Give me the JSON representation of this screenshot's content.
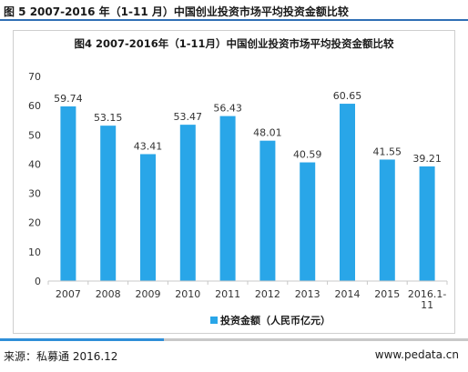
{
  "page": {
    "figure_title": "图 5 2007-2016 年（1-11 月）中国创业投资市场平均投资金额比较",
    "source": "来源：私募通 2016.12",
    "site": "www.pedata.cn"
  },
  "colors": {
    "bar": "#29a6e8",
    "rule_blue": "#2f6fb5",
    "axis": "#c8c8c8"
  },
  "chart_data": {
    "type": "bar",
    "title": "图4 2007-2016年（1-11月）中国创业投资市场平均投资金额比较",
    "categories": [
      "2007",
      "2008",
      "2009",
      "2010",
      "2011",
      "2012",
      "2013",
      "2014",
      "2015",
      "2016.1-11"
    ],
    "series": [
      {
        "name": "投资金额（人民币亿元）",
        "values": [
          59.74,
          53.15,
          43.41,
          53.47,
          56.43,
          48.01,
          40.59,
          60.65,
          41.55,
          39.21
        ]
      }
    ],
    "data_labels": [
      "59.74",
      "53.15",
      "43.41",
      "53.47",
      "56.43",
      "48.01",
      "40.59",
      "60.65",
      "41.55",
      "39.21"
    ],
    "yticks": [
      "0",
      "10",
      "20",
      "30",
      "40",
      "50",
      "60",
      "70"
    ],
    "ylim": [
      0,
      70
    ],
    "grid": false,
    "legend_position": "bottom"
  }
}
